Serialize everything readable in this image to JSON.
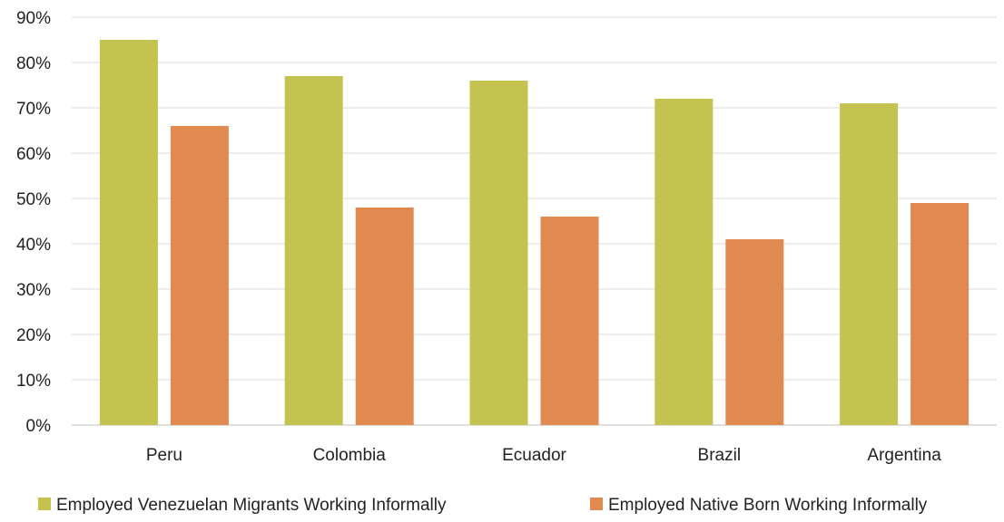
{
  "chart_data": {
    "type": "bar",
    "categories": [
      "Peru",
      "Colombia",
      "Ecuador",
      "Brazil",
      "Argentina"
    ],
    "series": [
      {
        "name": "Employed Venezuelan Migrants Working Informally",
        "values": [
          85,
          77,
          76,
          72,
          71
        ],
        "color": "#c5c34f"
      },
      {
        "name": "Employed Native Born Working Informally",
        "values": [
          66,
          48,
          46,
          41,
          49
        ],
        "color": "#e08a4f"
      }
    ],
    "ylim": [
      0,
      90
    ],
    "yticks": [
      "0%",
      "10%",
      "20%",
      "30%",
      "40%",
      "50%",
      "60%",
      "70%",
      "80%",
      "90%"
    ],
    "grid": true,
    "legend_position": "bottom"
  }
}
